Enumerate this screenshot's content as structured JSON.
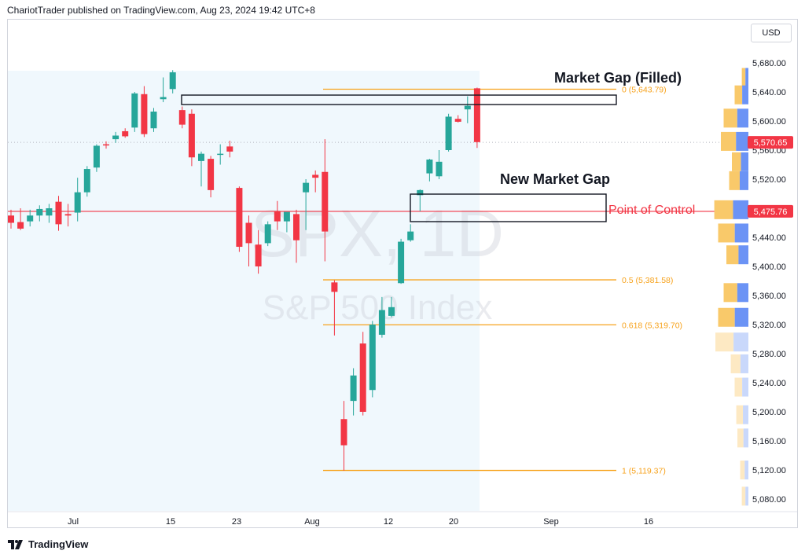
{
  "header": {
    "text": "ChariotTrader published on TradingView.com, Aug 23, 2024 19:42 UTC+8"
  },
  "currency_button": "USD",
  "watermark": {
    "symbol": "SPX, 1D",
    "name": "S&P 500 Index"
  },
  "footer": {
    "brand": "TradingView",
    "logo_icon": "tradingview-logo-icon"
  },
  "colors": {
    "up": "#26a69a",
    "down": "#f23645",
    "fib": "#f7a21b",
    "poc": "#f23645",
    "shade": "#e6f4fc"
  },
  "price_axis": {
    "ticks": [
      "5,680.00",
      "5,640.00",
      "5,600.00",
      "5,560.00",
      "5,520.00",
      "5,480.00",
      "5,440.00",
      "5,400.00",
      "5,360.00",
      "5,320.00",
      "5,280.00",
      "5,240.00",
      "5,200.00",
      "5,160.00",
      "5,120.00",
      "5,080.00"
    ],
    "current_price_label": "5,570.65",
    "poc_price_label": "5,475.76"
  },
  "time_axis": {
    "ticks": [
      "Jul",
      "15",
      "23",
      "Aug",
      "12",
      "20",
      "Sep",
      "16"
    ]
  },
  "annotations": {
    "market_gap_filled": "Market Gap (Filled)",
    "new_market_gap": "New Market Gap",
    "point_of_control": "Point of Control"
  },
  "fib_levels": [
    {
      "label": "0 (5,643.79)",
      "price": 5643.79
    },
    {
      "label": "0.5 (5,381.58)",
      "price": 5381.58
    },
    {
      "label": "0.618 (5,319.70)",
      "price": 5319.7
    },
    {
      "label": "1 (5,119.37)",
      "price": 5119.37
    }
  ],
  "chart_data": {
    "type": "candlestick",
    "symbol": "SPX",
    "interval": "1D",
    "ylim": [
      5060,
      5695
    ],
    "current_price": 5570.65,
    "point_of_control": 5475.76,
    "candles": [
      {
        "o": 5470,
        "h": 5478,
        "l": 5452,
        "c": 5460
      },
      {
        "o": 5461,
        "h": 5480,
        "l": 5450,
        "c": 5452
      },
      {
        "o": 5462,
        "h": 5478,
        "l": 5455,
        "c": 5470
      },
      {
        "o": 5470,
        "h": 5484,
        "l": 5462,
        "c": 5479
      },
      {
        "o": 5470,
        "h": 5486,
        "l": 5460,
        "c": 5480
      },
      {
        "o": 5489,
        "h": 5497,
        "l": 5449,
        "c": 5458
      },
      {
        "o": 5472,
        "h": 5486,
        "l": 5455,
        "c": 5470
      },
      {
        "o": 5474,
        "h": 5522,
        "l": 5462,
        "c": 5502
      },
      {
        "o": 5502,
        "h": 5538,
        "l": 5496,
        "c": 5534
      },
      {
        "o": 5536,
        "h": 5568,
        "l": 5530,
        "c": 5566
      },
      {
        "o": 5568,
        "h": 5572,
        "l": 5562,
        "c": 5567
      },
      {
        "o": 5575,
        "h": 5585,
        "l": 5570,
        "c": 5580
      },
      {
        "o": 5586,
        "h": 5590,
        "l": 5577,
        "c": 5579
      },
      {
        "o": 5591,
        "h": 5640,
        "l": 5585,
        "c": 5638
      },
      {
        "o": 5637,
        "h": 5648,
        "l": 5578,
        "c": 5582
      },
      {
        "o": 5590,
        "h": 5618,
        "l": 5585,
        "c": 5613
      },
      {
        "o": 5630,
        "h": 5660,
        "l": 5626,
        "c": 5633
      },
      {
        "o": 5644,
        "h": 5670,
        "l": 5638,
        "c": 5667
      },
      {
        "o": 5615,
        "h": 5620,
        "l": 5590,
        "c": 5595
      },
      {
        "o": 5610,
        "h": 5616,
        "l": 5538,
        "c": 5550
      },
      {
        "o": 5545,
        "h": 5558,
        "l": 5510,
        "c": 5555
      },
      {
        "o": 5548,
        "h": 5552,
        "l": 5495,
        "c": 5505
      },
      {
        "o": 5555,
        "h": 5568,
        "l": 5540,
        "c": 5555
      },
      {
        "o": 5565,
        "h": 5573,
        "l": 5550,
        "c": 5558
      },
      {
        "o": 5508,
        "h": 5510,
        "l": 5420,
        "c": 5427
      },
      {
        "o": 5460,
        "h": 5470,
        "l": 5400,
        "c": 5432
      },
      {
        "o": 5430,
        "h": 5450,
        "l": 5390,
        "c": 5400
      },
      {
        "o": 5432,
        "h": 5462,
        "l": 5428,
        "c": 5458
      },
      {
        "o": 5476,
        "h": 5490,
        "l": 5450,
        "c": 5462
      },
      {
        "o": 5462,
        "h": 5472,
        "l": 5447,
        "c": 5475
      },
      {
        "o": 5472,
        "h": 5478,
        "l": 5405,
        "c": 5436
      },
      {
        "o": 5502,
        "h": 5520,
        "l": 5450,
        "c": 5515
      },
      {
        "o": 5526,
        "h": 5532,
        "l": 5502,
        "c": 5522
      },
      {
        "o": 5530,
        "h": 5575,
        "l": 5407,
        "c": 5448
      },
      {
        "o": 5378,
        "h": 5381,
        "l": 5305,
        "c": 5365
      },
      {
        "o": 5190,
        "h": 5215,
        "l": 5119,
        "c": 5154
      },
      {
        "o": 5215,
        "h": 5260,
        "l": 5195,
        "c": 5250
      },
      {
        "o": 5294,
        "h": 5310,
        "l": 5195,
        "c": 5200
      },
      {
        "o": 5230,
        "h": 5325,
        "l": 5220,
        "c": 5320
      },
      {
        "o": 5306,
        "h": 5358,
        "l": 5302,
        "c": 5340
      },
      {
        "o": 5332,
        "h": 5358,
        "l": 5330,
        "c": 5344
      },
      {
        "o": 5377,
        "h": 5438,
        "l": 5376,
        "c": 5434
      },
      {
        "o": 5436,
        "h": 5458,
        "l": 5434,
        "c": 5448
      },
      {
        "o": 5498,
        "h": 5506,
        "l": 5476,
        "c": 5505
      },
      {
        "o": 5528,
        "h": 5548,
        "l": 5517,
        "c": 5547
      },
      {
        "o": 5524,
        "h": 5560,
        "l": 5520,
        "c": 5544
      },
      {
        "o": 5560,
        "h": 5610,
        "l": 5558,
        "c": 5606
      },
      {
        "o": 5603,
        "h": 5608,
        "l": 5598,
        "c": 5599
      },
      {
        "o": 5616,
        "h": 5634,
        "l": 5597,
        "c": 5621
      },
      {
        "o": 5645,
        "h": 5646,
        "l": 5563,
        "c": 5571
      }
    ],
    "volume_profile": [
      {
        "price": 5660,
        "value": 0.12,
        "pocus": false
      },
      {
        "price": 5636,
        "value": 0.25,
        "pocus": false
      },
      {
        "price": 5604,
        "value": 0.45,
        "pocus": false
      },
      {
        "price": 5572,
        "value": 0.5,
        "pocus": false
      },
      {
        "price": 5544,
        "value": 0.3,
        "pocus": false
      },
      {
        "price": 5518,
        "value": 0.35,
        "pocus": false
      },
      {
        "price": 5478,
        "value": 0.62,
        "pocus": true
      },
      {
        "price": 5446,
        "value": 0.55,
        "pocus": false
      },
      {
        "price": 5416,
        "value": 0.4,
        "pocus": false
      },
      {
        "price": 5364,
        "value": 0.45,
        "pocus": false
      },
      {
        "price": 5330,
        "value": 0.55,
        "pocus": false
      },
      {
        "price": 5296,
        "value": 0.6,
        "pocus": false
      },
      {
        "price": 5266,
        "value": 0.32,
        "pocus": false
      },
      {
        "price": 5234,
        "value": 0.25,
        "pocus": false
      },
      {
        "price": 5196,
        "value": 0.22,
        "pocus": false
      },
      {
        "price": 5164,
        "value": 0.2,
        "pocus": false
      },
      {
        "price": 5120,
        "value": 0.15,
        "pocus": false
      },
      {
        "price": 5084,
        "value": 0.12,
        "pocus": false
      }
    ]
  }
}
